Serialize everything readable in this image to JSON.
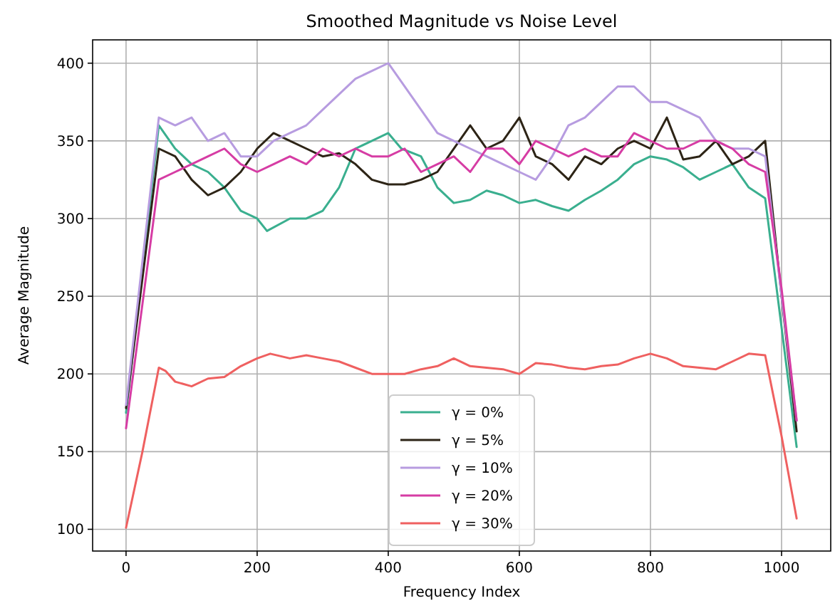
{
  "chart_data": {
    "type": "line",
    "title": "Smoothed Magnitude vs Noise Level",
    "xlabel": "Frequency Index",
    "ylabel": "Average Magnitude",
    "xlim": [
      -51,
      1075
    ],
    "xticks": [
      0,
      200,
      400,
      600,
      800,
      1000
    ],
    "ylim": [
      86,
      415
    ],
    "yticks": [
      100,
      150,
      200,
      250,
      300,
      350,
      400
    ],
    "grid": true,
    "legend": "bottom",
    "line_style": "solid",
    "series": [
      {
        "name": "γ = 0%",
        "color": "#3aaf8f",
        "x": [
          0,
          50,
          75,
          100,
          125,
          150,
          175,
          200,
          215,
          250,
          275,
          300,
          325,
          350,
          375,
          400,
          420,
          450,
          475,
          500,
          525,
          550,
          575,
          600,
          625,
          650,
          675,
          700,
          725,
          750,
          775,
          800,
          825,
          850,
          875,
          900,
          925,
          950,
          975,
          1000,
          1023
        ],
        "values": [
          175,
          360,
          345,
          335,
          330,
          320,
          305,
          300,
          292,
          300,
          300,
          305,
          320,
          345,
          350,
          355,
          345,
          340,
          320,
          310,
          312,
          318,
          315,
          310,
          312,
          308,
          305,
          312,
          318,
          325,
          335,
          340,
          338,
          333,
          325,
          330,
          335,
          320,
          313,
          230,
          153
        ]
      },
      {
        "name": "γ = 5%",
        "color": "#2d2416",
        "x": [
          0,
          50,
          75,
          100,
          125,
          150,
          175,
          200,
          225,
          250,
          275,
          300,
          325,
          350,
          375,
          400,
          425,
          450,
          475,
          500,
          525,
          550,
          575,
          600,
          625,
          650,
          675,
          700,
          725,
          750,
          775,
          800,
          825,
          850,
          875,
          900,
          925,
          950,
          975,
          1000,
          1023
        ],
        "values": [
          178,
          345,
          340,
          325,
          315,
          320,
          330,
          345,
          355,
          350,
          345,
          340,
          342,
          335,
          325,
          322,
          322,
          325,
          330,
          345,
          360,
          345,
          350,
          365,
          340,
          335,
          325,
          340,
          335,
          345,
          350,
          345,
          365,
          338,
          340,
          350,
          335,
          340,
          350,
          250,
          163
        ]
      },
      {
        "name": "γ = 10%",
        "color": "#b79ce0",
        "x": [
          0,
          50,
          75,
          100,
          125,
          150,
          175,
          200,
          225,
          250,
          275,
          300,
          325,
          350,
          375,
          400,
          425,
          450,
          475,
          500,
          525,
          550,
          575,
          600,
          625,
          650,
          675,
          700,
          725,
          750,
          775,
          800,
          825,
          850,
          875,
          900,
          925,
          950,
          975,
          1000,
          1023
        ],
        "values": [
          180,
          365,
          360,
          365,
          350,
          355,
          340,
          340,
          350,
          355,
          360,
          370,
          380,
          390,
          395,
          400,
          385,
          370,
          355,
          350,
          345,
          340,
          335,
          330,
          325,
          340,
          360,
          365,
          375,
          385,
          385,
          375,
          375,
          370,
          365,
          350,
          345,
          345,
          340,
          250,
          170
        ]
      },
      {
        "name": "γ = 20%",
        "color": "#d63ca4",
        "x": [
          0,
          50,
          75,
          100,
          125,
          150,
          175,
          200,
          225,
          250,
          275,
          300,
          325,
          350,
          375,
          400,
          425,
          450,
          475,
          500,
          525,
          550,
          575,
          600,
          625,
          650,
          675,
          700,
          725,
          750,
          775,
          800,
          825,
          850,
          875,
          900,
          925,
          950,
          975,
          1000,
          1023
        ],
        "values": [
          165,
          325,
          330,
          335,
          340,
          345,
          335,
          330,
          335,
          340,
          335,
          345,
          340,
          345,
          340,
          340,
          345,
          330,
          335,
          340,
          330,
          345,
          345,
          335,
          350,
          345,
          340,
          345,
          340,
          340,
          355,
          350,
          345,
          345,
          350,
          350,
          345,
          335,
          330,
          255,
          170
        ]
      },
      {
        "name": "γ = 30%",
        "color": "#ef6060",
        "x": [
          0,
          25,
          50,
          60,
          75,
          100,
          125,
          150,
          175,
          200,
          220,
          250,
          275,
          300,
          325,
          350,
          375,
          400,
          425,
          450,
          475,
          500,
          525,
          550,
          575,
          600,
          625,
          650,
          675,
          700,
          725,
          750,
          775,
          800,
          825,
          850,
          875,
          900,
          925,
          950,
          975,
          1000,
          1023
        ],
        "values": [
          101,
          150,
          204,
          202,
          195,
          192,
          197,
          198,
          205,
          210,
          213,
          210,
          212,
          210,
          208,
          204,
          200,
          200,
          200,
          203,
          205,
          210,
          205,
          204,
          203,
          200,
          207,
          206,
          204,
          203,
          205,
          206,
          210,
          213,
          210,
          205,
          204,
          203,
          208,
          213,
          212,
          160,
          107
        ]
      }
    ]
  }
}
